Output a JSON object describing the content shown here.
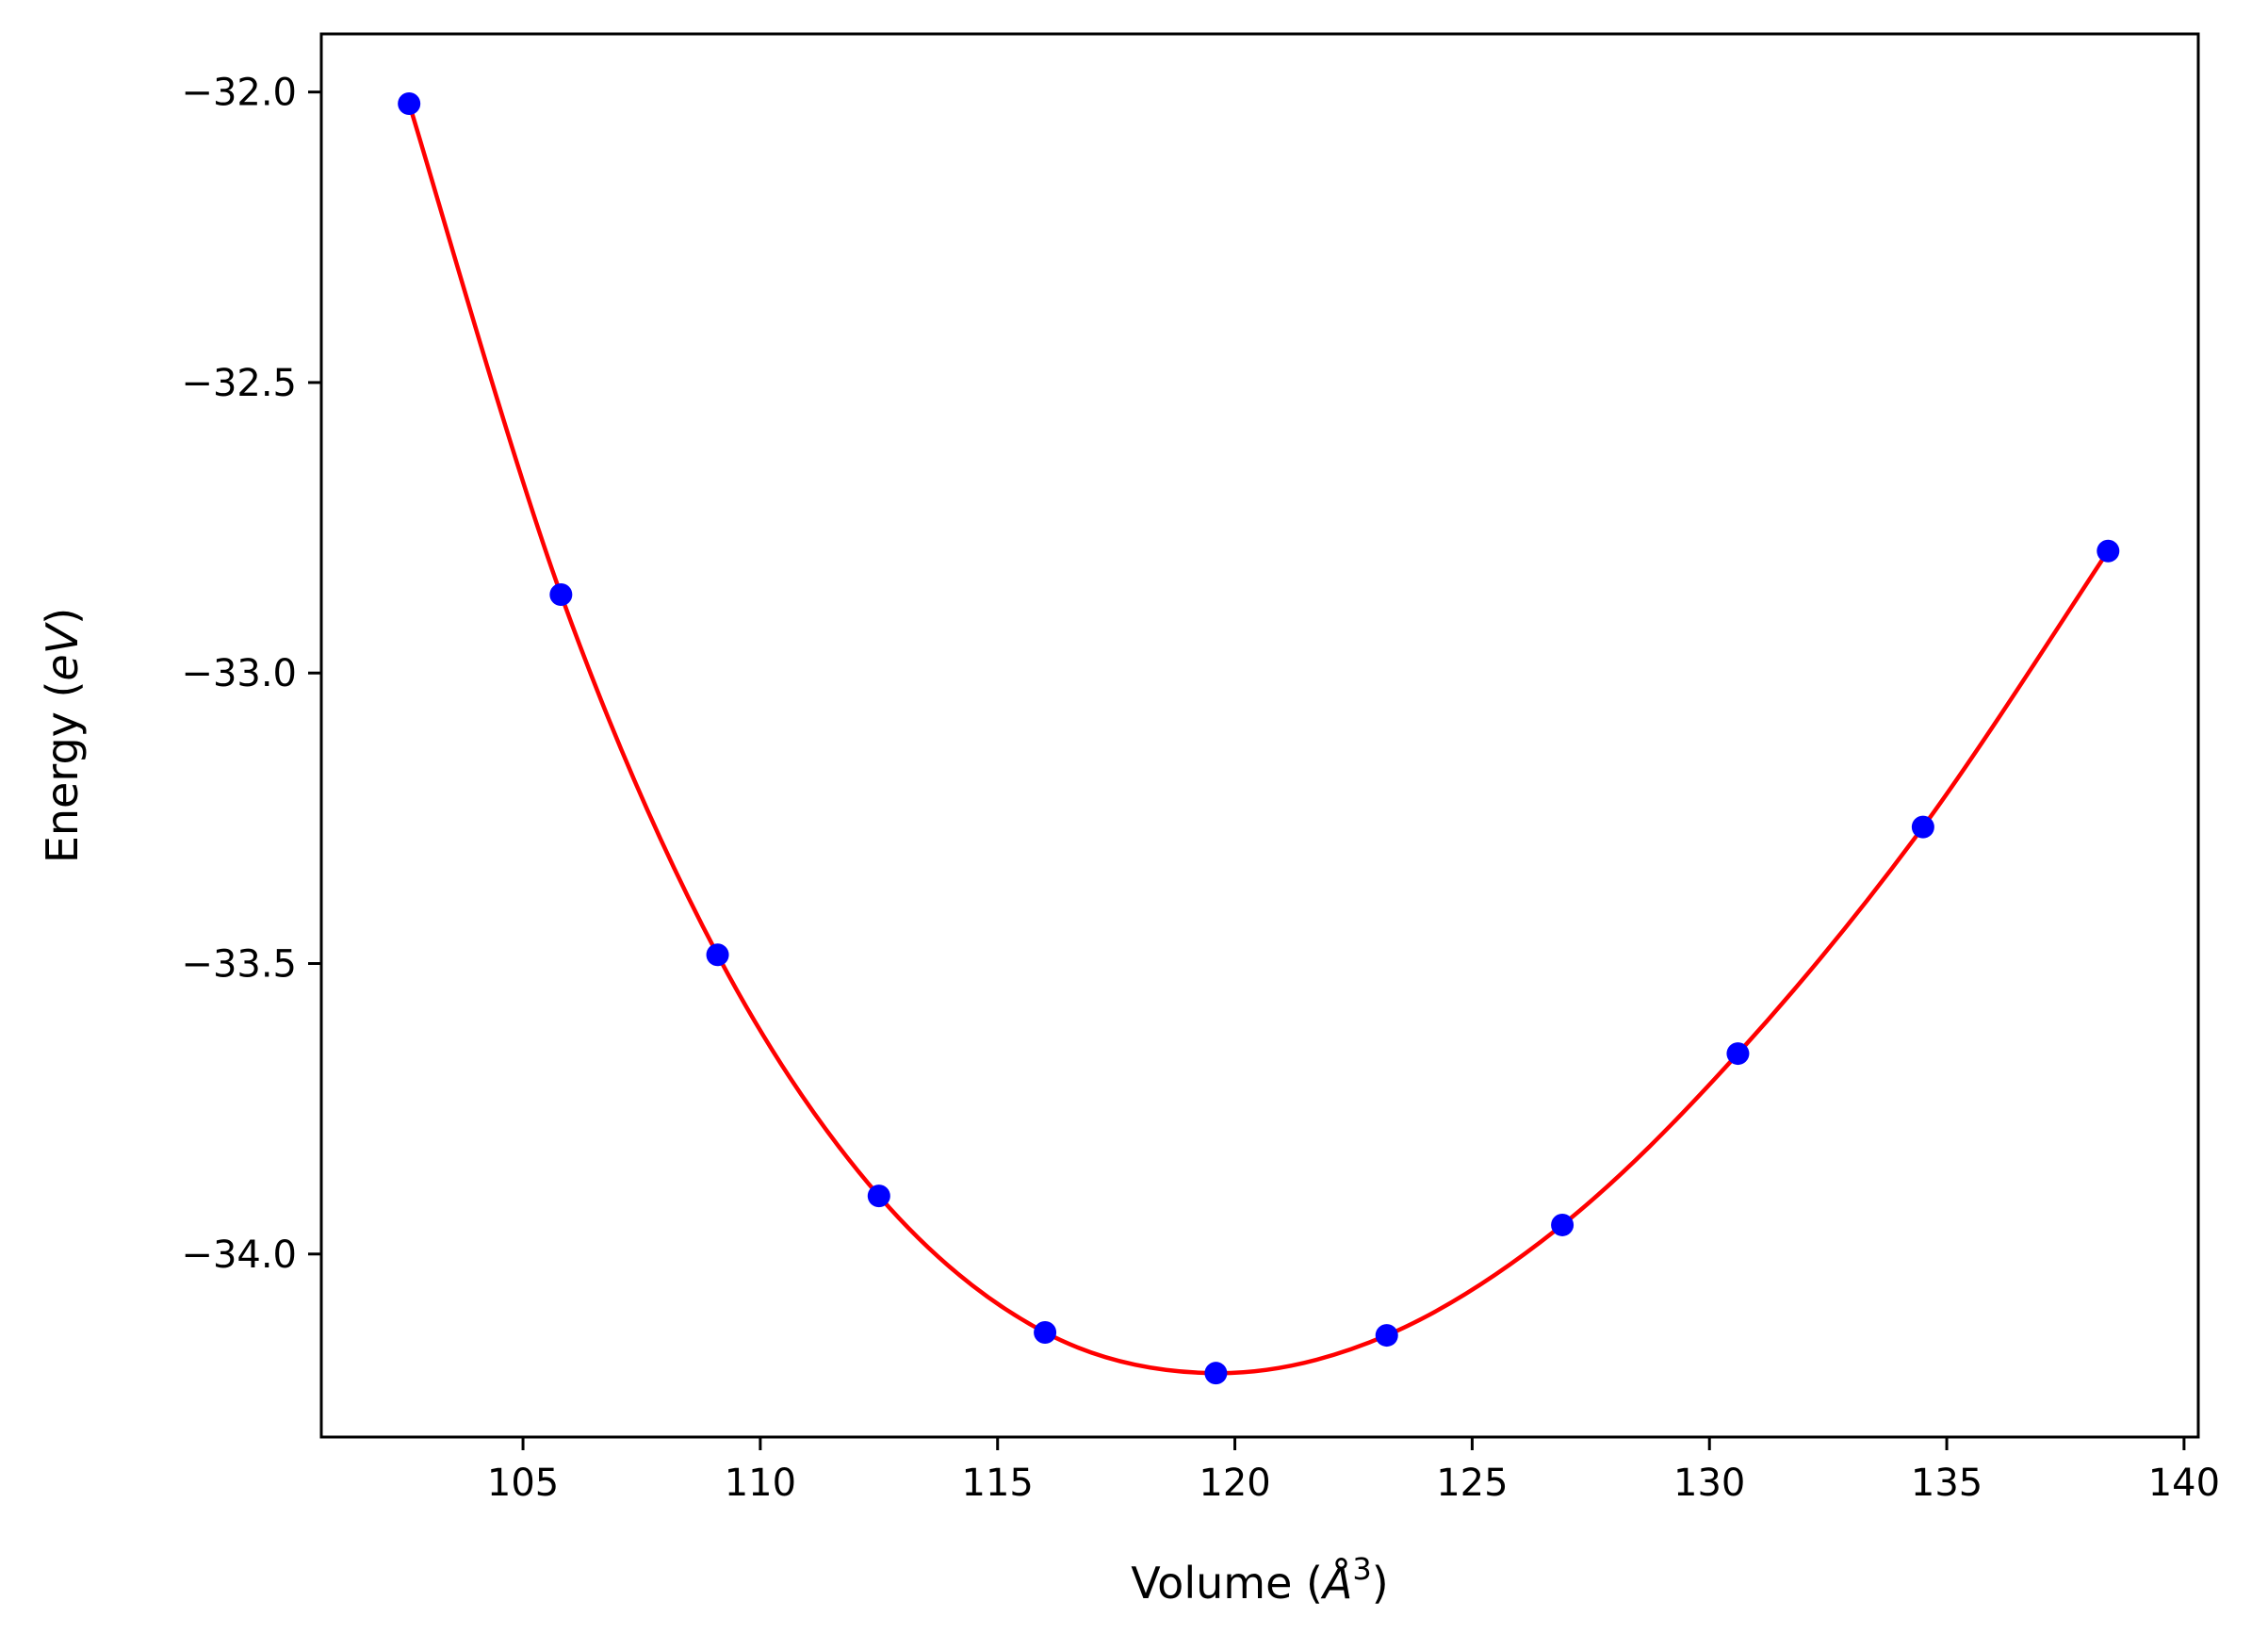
{
  "chart_data": {
    "type": "line",
    "title": "",
    "xlabel": "Volume",
    "ylabel": "Energy",
    "xlabel_parts": {
      "text": "Volume (",
      "unit": "Å",
      "exponent": "3",
      "close": ")"
    },
    "ylabel_parts": {
      "text": "Energy (",
      "unit": "eV",
      "close": ")"
    },
    "xlim": [
      100.75,
      140.3
    ],
    "ylim": [
      -34.315,
      -31.9
    ],
    "x_ticks": [
      105,
      110,
      115,
      120,
      125,
      130,
      135,
      140
    ],
    "x_tick_labels": [
      "105",
      "110",
      "115",
      "120",
      "125",
      "130",
      "135",
      "140"
    ],
    "y_ticks": [
      -32.0,
      -32.5,
      -33.0,
      -33.5,
      -34.0
    ],
    "y_tick_labels": [
      "−32.0",
      "−32.5",
      "−33.0",
      "−33.5",
      "−34.0"
    ],
    "grid": false,
    "legend": "none",
    "series": [
      {
        "kind": "scatter",
        "color": "#0000ff",
        "x": [
          102.6,
          105.8,
          109.1,
          112.5,
          116.0,
          119.6,
          123.2,
          126.9,
          130.6,
          134.5,
          138.4
        ],
        "y": [
          -32.02,
          -32.865,
          -33.485,
          -33.9,
          -34.135,
          -34.205,
          -34.14,
          -33.95,
          -33.655,
          -33.265,
          -32.79
        ]
      },
      {
        "kind": "fit",
        "color": "#ff0000",
        "x": [
          102.6,
          105.8,
          109.1,
          112.5,
          116.0,
          119.6,
          123.2,
          126.9,
          130.6,
          134.5,
          138.4
        ],
        "y": [
          -32.02,
          -32.865,
          -33.485,
          -33.9,
          -34.135,
          -34.205,
          -34.14,
          -33.95,
          -33.655,
          -33.265,
          -32.79
        ]
      }
    ]
  }
}
